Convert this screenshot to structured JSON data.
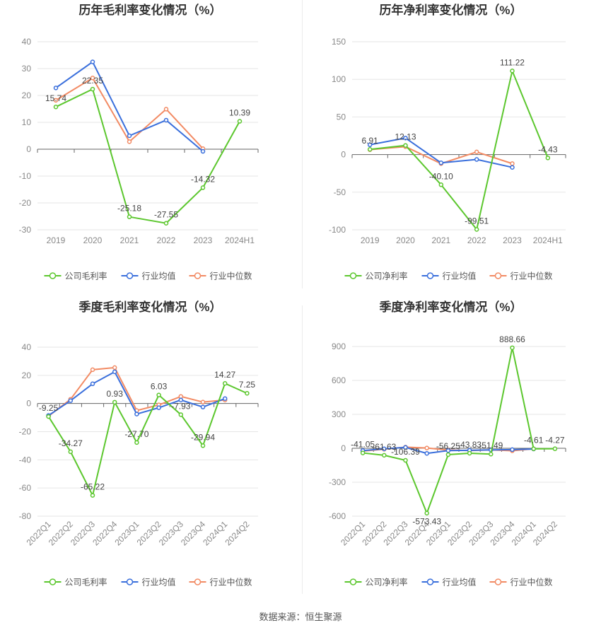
{
  "colors": {
    "company": "#5cc72e",
    "industry_avg": "#3a6fdc",
    "industry_median": "#f28a63",
    "grid": "#e6e6e6",
    "axis": "#666666",
    "tick": "#888888",
    "label": "#444444"
  },
  "legend": {
    "company_gross": "公司毛利率",
    "company_net": "公司净利率",
    "industry_avg": "行业均值",
    "industry_median": "行业中位数"
  },
  "source": "数据来源：恒生聚源",
  "chart_data": [
    {
      "type": "line",
      "title": "历年毛利率变化情况（%）",
      "categories": [
        "2019",
        "2020",
        "2021",
        "2022",
        "2023",
        "2024H1"
      ],
      "ylim": [
        -30,
        40
      ],
      "yticks": [
        -30,
        -20,
        -10,
        0,
        10,
        20,
        30,
        40
      ],
      "grid": true,
      "legend_position": "bottom",
      "series": [
        {
          "name": "公司毛利率",
          "values": [
            15.74,
            22.35,
            -25.18,
            -27.55,
            -14.32,
            10.39
          ],
          "labels": [
            "15.74",
            "22.35",
            "-25.18",
            "-27.55",
            "-14.32",
            "10.39"
          ]
        },
        {
          "name": "行业均值",
          "values": [
            22.8,
            32.5,
            5.0,
            10.8,
            -0.8,
            null
          ]
        },
        {
          "name": "行业中位数",
          "values": [
            18.2,
            26.5,
            2.8,
            14.9,
            0.2,
            null
          ]
        }
      ]
    },
    {
      "type": "line",
      "title": "历年净利率变化情况（%）",
      "categories": [
        "2019",
        "2020",
        "2021",
        "2022",
        "2023",
        "2024H1"
      ],
      "ylim": [
        -100,
        150
      ],
      "yticks": [
        -100,
        -50,
        0,
        50,
        100,
        150
      ],
      "grid": true,
      "legend_position": "bottom",
      "series": [
        {
          "name": "公司净利率",
          "values": [
            6.91,
            12.13,
            -40.1,
            -99.51,
            111.22,
            -4.43
          ],
          "labels": [
            "6.91",
            "12.13",
            "-40.10",
            "-99.51",
            "111.22",
            "-4.43"
          ]
        },
        {
          "name": "行业均值",
          "values": [
            13.0,
            22.0,
            -11.0,
            -6.5,
            -17.0,
            null
          ]
        },
        {
          "name": "行业中位数",
          "values": [
            6.5,
            10.5,
            -12.0,
            3.5,
            -12.0,
            null
          ]
        }
      ]
    },
    {
      "type": "line",
      "title": "季度毛利率变化情况（%）",
      "categories": [
        "2022Q1",
        "2022Q2",
        "2022Q3",
        "2022Q4",
        "2023Q1",
        "2023Q2",
        "2023Q3",
        "2023Q4",
        "2024Q1",
        "2024Q2"
      ],
      "ylim": [
        -80,
        40
      ],
      "yticks": [
        -80,
        -60,
        -40,
        -20,
        0,
        20,
        40
      ],
      "grid": true,
      "legend_position": "bottom",
      "series": [
        {
          "name": "公司毛利率",
          "values": [
            -9.25,
            -34.27,
            -65.22,
            0.93,
            -27.7,
            6.03,
            -7.93,
            -29.94,
            14.27,
            7.25
          ],
          "labels": [
            "-9.25",
            "-34.27",
            "-65.22",
            "0.93",
            "-27.70",
            "6.03",
            "-7.93",
            "-29.94",
            "14.27",
            "7.25"
          ]
        },
        {
          "name": "行业均值",
          "values": [
            -8.5,
            2.0,
            14.0,
            22.5,
            -7.5,
            -3.0,
            2.5,
            -2.5,
            3.5,
            null
          ]
        },
        {
          "name": "行业中位数",
          "values": [
            -9.0,
            3.0,
            24.0,
            25.5,
            -5.0,
            -1.0,
            5.0,
            1.0,
            2.5,
            null
          ]
        }
      ]
    },
    {
      "type": "line",
      "title": "季度净利率变化情况（%）",
      "categories": [
        "2022Q1",
        "2022Q2",
        "2022Q3",
        "2022Q4",
        "2023Q1",
        "2023Q2",
        "2023Q3",
        "2023Q4",
        "2024Q1",
        "2024Q2"
      ],
      "ylim": [
        -600,
        900
      ],
      "yticks": [
        -600,
        -300,
        0,
        300,
        600,
        900
      ],
      "grid": true,
      "legend_position": "bottom",
      "series": [
        {
          "name": "公司净利率",
          "values": [
            -41.05,
            -61.63,
            -106.39,
            -573.43,
            -56.25,
            -43.83,
            -51.49,
            888.66,
            -4.61,
            -4.27
          ],
          "labels": [
            "-41.05",
            "-61.63",
            "-106.39",
            "-573.43",
            "-56.25",
            "-43.83",
            "-51.49",
            "888.66",
            "-4.61",
            "-4.27"
          ]
        },
        {
          "name": "行业均值",
          "values": [
            -20.0,
            -5.0,
            8.0,
            -45.0,
            -20.0,
            -18.0,
            -14.0,
            -12.0,
            -6.0,
            null
          ]
        },
        {
          "name": "行业中位数",
          "values": [
            -25.0,
            -8.0,
            10.0,
            2.0,
            -15.0,
            -20.0,
            -14.0,
            -22.0,
            -5.0,
            null
          ]
        }
      ]
    }
  ]
}
